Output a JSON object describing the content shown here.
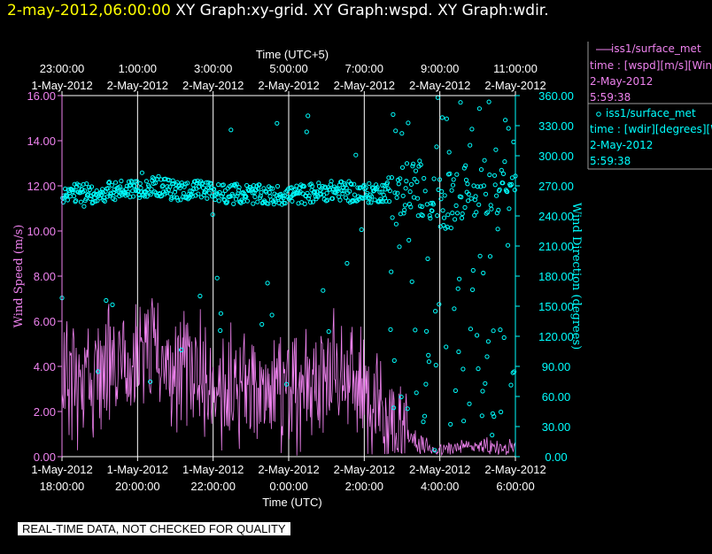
{
  "header": {
    "timestamp": "2-may-2012,06:00:00",
    "titles": "XY Graph:xy-grid.  XY Graph:wspd.  XY Graph:wdir."
  },
  "axes": {
    "top_title": "Time (UTC+5)",
    "bottom_title": "Time (UTC)",
    "left_title": "Wind Speed (m/s)",
    "right_title": "Wind Direction (degrees)",
    "top_ticks": [
      {
        "time": "23:00:00",
        "date": "1-May-2012"
      },
      {
        "time": "1:00:00",
        "date": "2-May-2012"
      },
      {
        "time": "3:00:00",
        "date": "2-May-2012"
      },
      {
        "time": "5:00:00",
        "date": "2-May-2012"
      },
      {
        "time": "7:00:00",
        "date": "2-May-2012"
      },
      {
        "time": "9:00:00",
        "date": "2-May-2012"
      },
      {
        "time": "11:00:00",
        "date": "2-May-2012"
      }
    ],
    "bottom_ticks": [
      {
        "date": "1-May-2012",
        "time": "18:00:00"
      },
      {
        "date": "1-May-2012",
        "time": "20:00:00"
      },
      {
        "date": "1-May-2012",
        "time": "22:00:00"
      },
      {
        "date": "2-May-2012",
        "time": "0:00:00"
      },
      {
        "date": "2-May-2012",
        "time": "2:00:00"
      },
      {
        "date": "2-May-2012",
        "time": "4:00:00"
      },
      {
        "date": "2-May-2012",
        "time": "6:00:00"
      }
    ],
    "left_ticks": [
      "0.00",
      "2.00",
      "4.00",
      "6.00",
      "8.00",
      "10.00",
      "12.00",
      "14.00",
      "16.00"
    ],
    "right_ticks": [
      "0.00",
      "30.00",
      "60.00",
      "90.00",
      "120.00",
      "150.00",
      "180.00",
      "210.00",
      "240.00",
      "270.00",
      "300.00",
      "330.00",
      "360.00"
    ]
  },
  "legend": {
    "wspd": {
      "name": "iss1/surface_met",
      "line1": "time : [wspd][m/s][Wind",
      "line2": "2-May-2012",
      "line3": "5:59:38"
    },
    "wdir": {
      "name": "iss1/surface_met",
      "line1": "time : [wdir][degrees][Wi",
      "line2": "2-May-2012",
      "line3": "5:59:38"
    }
  },
  "footer_note": "REAL-TIME DATA, NOT CHECKED FOR QUALITY",
  "colors": {
    "wspd": "#ee82ee",
    "wdir": "#00ffff",
    "grid": "#ffffff",
    "background": "#000000",
    "timestamp": "#ffff00"
  },
  "chart_data": {
    "type": "line",
    "x_axis": "Time (UTC)",
    "x_range": [
      "2012-05-01 18:00:00",
      "2012-05-02 06:00:00"
    ],
    "grid": "vertical lines at 2-hour ticks",
    "series": [
      {
        "name": "iss1/surface_met",
        "variable": "wspd",
        "axis": "left",
        "units": "m/s",
        "ylim": [
          0,
          16
        ],
        "style": "line",
        "color": "#ee82ee",
        "x": [
          "1-May 18:00",
          "1-May 18:30",
          "1-May 19:00",
          "1-May 19:30",
          "1-May 20:00",
          "1-May 20:30",
          "1-May 21:00",
          "1-May 21:30",
          "1-May 22:00",
          "1-May 22:30",
          "1-May 23:00",
          "1-May 23:30",
          "2-May 0:00",
          "2-May 0:30",
          "2-May 1:00",
          "2-May 1:30",
          "2-May 2:00",
          "2-May 2:30",
          "2-May 3:00",
          "2-May 3:30",
          "2-May 4:00",
          "2-May 4:30",
          "2-May 5:00",
          "2-May 5:30",
          "2-May 6:00"
        ],
        "values": [
          3.5,
          3.2,
          3.6,
          3.9,
          4.3,
          4.5,
          4.1,
          3.8,
          3.5,
          3.0,
          3.3,
          2.9,
          3.0,
          3.1,
          3.7,
          3.4,
          2.9,
          2.0,
          1.2,
          0.5,
          0.3,
          0.4,
          0.5,
          0.4,
          0.3
        ]
      },
      {
        "name": "iss1/surface_met",
        "variable": "wdir",
        "axis": "right",
        "units": "degrees",
        "ylim": [
          0,
          360
        ],
        "style": "scatter",
        "color": "#00ffff",
        "x": [
          "1-May 18:00",
          "1-May 18:30",
          "1-May 19:00",
          "1-May 19:30",
          "1-May 20:00",
          "1-May 20:30",
          "1-May 21:00",
          "1-May 21:30",
          "1-May 22:00",
          "1-May 22:30",
          "1-May 23:00",
          "1-May 23:30",
          "2-May 0:00",
          "2-May 0:30",
          "2-May 1:00",
          "2-May 1:30",
          "2-May 2:00",
          "2-May 2:30",
          "2-May 3:00",
          "2-May 3:30",
          "2-May 4:00",
          "2-May 4:30",
          "2-May 5:00",
          "2-May 5:30",
          "2-May 6:00"
        ],
        "values": [
          259,
          263,
          262,
          266,
          268,
          270,
          265,
          266,
          264,
          262,
          262,
          260,
          261,
          262,
          265,
          265,
          262,
          264,
          266,
          268,
          250,
          260,
          270,
          268,
          265
        ]
      }
    ]
  }
}
